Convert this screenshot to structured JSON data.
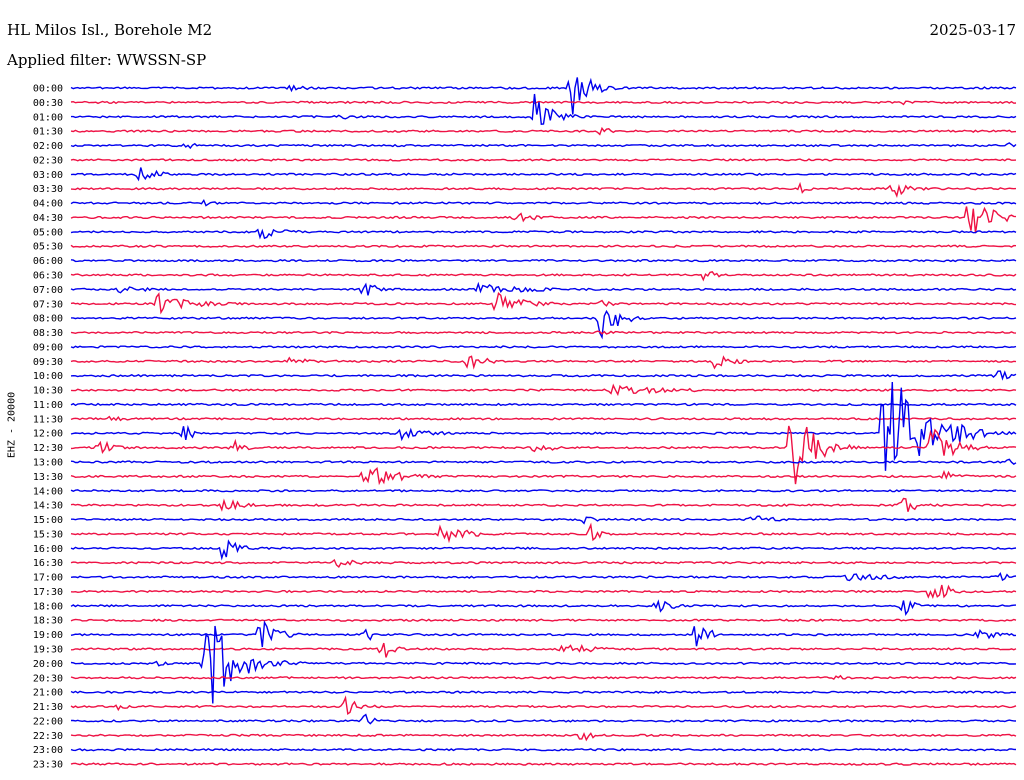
{
  "header": {
    "station": "HL Milos Isl., Borehole M2",
    "date": "2025-03-17",
    "filter": "Applied filter: WWSSN-SP"
  },
  "channel_label": "EHZ - 20000",
  "colors": {
    "even": "#0000ee",
    "odd": "#ee1144"
  },
  "chart_data": {
    "type": "line",
    "title": "HL Milos Isl., Borehole M2",
    "subtitle": "Applied filter: WWSSN-SP",
    "ylabel": "EHZ - 20000",
    "xlabel": "",
    "trace_minutes": 30,
    "rows": [
      "00:00",
      "00:30",
      "01:00",
      "01:30",
      "02:00",
      "02:30",
      "03:00",
      "03:30",
      "04:00",
      "04:30",
      "05:00",
      "05:30",
      "06:00",
      "06:30",
      "07:00",
      "07:30",
      "08:00",
      "08:30",
      "09:00",
      "09:30",
      "10:00",
      "10:30",
      "11:00",
      "11:30",
      "12:00",
      "12:30",
      "13:00",
      "13:30",
      "14:00",
      "14:30",
      "15:00",
      "15:30",
      "16:00",
      "16:30",
      "17:00",
      "17:30",
      "18:00",
      "18:30",
      "19:00",
      "19:30",
      "20:00",
      "20:30",
      "21:00",
      "21:30",
      "22:00",
      "22:30",
      "23:00",
      "23:30"
    ],
    "series_colors": [
      "blue",
      "red"
    ],
    "events": [
      {
        "row": "00:00",
        "t": 0.23,
        "amp": 3,
        "dur": 0.04
      },
      {
        "row": "00:00",
        "t": 0.53,
        "amp": 30,
        "dur": 0.02
      },
      {
        "row": "00:30",
        "t": 0.88,
        "amp": 3,
        "dur": 0.01
      },
      {
        "row": "01:00",
        "t": 0.28,
        "amp": 4,
        "dur": 0.02
      },
      {
        "row": "01:00",
        "t": 0.49,
        "amp": 30,
        "dur": 0.02
      },
      {
        "row": "01:30",
        "t": 0.56,
        "amp": 6,
        "dur": 0.01
      },
      {
        "row": "02:00",
        "t": 0.12,
        "amp": 6,
        "dur": 0.01
      },
      {
        "row": "02:00",
        "t": 0.99,
        "amp": 4,
        "dur": 0.01
      },
      {
        "row": "03:00",
        "t": 0.07,
        "amp": 12,
        "dur": 0.02
      },
      {
        "row": "03:30",
        "t": 0.77,
        "amp": 7,
        "dur": 0.01
      },
      {
        "row": "03:30",
        "t": 0.87,
        "amp": 9,
        "dur": 0.02
      },
      {
        "row": "04:00",
        "t": 0.14,
        "amp": 3,
        "dur": 0.03
      },
      {
        "row": "04:30",
        "t": 0.47,
        "amp": 5,
        "dur": 0.04
      },
      {
        "row": "04:30",
        "t": 0.95,
        "amp": 25,
        "dur": 0.03
      },
      {
        "row": "05:00",
        "t": 0.2,
        "amp": 8,
        "dur": 0.03
      },
      {
        "row": "06:30",
        "t": 0.67,
        "amp": 8,
        "dur": 0.01
      },
      {
        "row": "07:00",
        "t": 0.05,
        "amp": 6,
        "dur": 0.03
      },
      {
        "row": "07:00",
        "t": 0.31,
        "amp": 12,
        "dur": 0.01
      },
      {
        "row": "07:00",
        "t": 0.43,
        "amp": 6,
        "dur": 0.08
      },
      {
        "row": "07:30",
        "t": 0.09,
        "amp": 14,
        "dur": 0.05
      },
      {
        "row": "07:30",
        "t": 0.45,
        "amp": 12,
        "dur": 0.04
      },
      {
        "row": "07:30",
        "t": 0.56,
        "amp": 6,
        "dur": 0.01
      },
      {
        "row": "08:00",
        "t": 0.56,
        "amp": 25,
        "dur": 0.02
      },
      {
        "row": "08:30",
        "t": 0.56,
        "amp": 4,
        "dur": 0.02
      },
      {
        "row": "09:30",
        "t": 0.23,
        "amp": 4,
        "dur": 0.04
      },
      {
        "row": "09:30",
        "t": 0.42,
        "amp": 10,
        "dur": 0.02
      },
      {
        "row": "09:30",
        "t": 0.68,
        "amp": 8,
        "dur": 0.03
      },
      {
        "row": "10:00",
        "t": 0.98,
        "amp": 6,
        "dur": 0.02
      },
      {
        "row": "10:30",
        "t": 0.57,
        "amp": 5,
        "dur": 0.12
      },
      {
        "row": "11:30",
        "t": 0.04,
        "amp": 3,
        "dur": 0.03
      },
      {
        "row": "12:00",
        "t": 0.12,
        "amp": 10,
        "dur": 0.01
      },
      {
        "row": "12:00",
        "t": 0.35,
        "amp": 7,
        "dur": 0.04
      },
      {
        "row": "12:00",
        "t": 0.86,
        "amp": 90,
        "dur": 0.04
      },
      {
        "row": "12:00",
        "t": 0.93,
        "amp": 14,
        "dur": 0.04
      },
      {
        "row": "12:30",
        "t": 0.03,
        "amp": 8,
        "dur": 0.02
      },
      {
        "row": "12:30",
        "t": 0.17,
        "amp": 12,
        "dur": 0.01
      },
      {
        "row": "12:30",
        "t": 0.49,
        "amp": 6,
        "dur": 0.03
      },
      {
        "row": "12:30",
        "t": 0.76,
        "amp": 50,
        "dur": 0.03
      },
      {
        "row": "12:30",
        "t": 0.91,
        "amp": 22,
        "dur": 0.03
      },
      {
        "row": "13:00",
        "t": 0.99,
        "amp": 5,
        "dur": 0.01
      },
      {
        "row": "13:30",
        "t": 0.31,
        "amp": 12,
        "dur": 0.05
      },
      {
        "row": "13:30",
        "t": 0.92,
        "amp": 6,
        "dur": 0.03
      },
      {
        "row": "14:30",
        "t": 0.16,
        "amp": 6,
        "dur": 0.04
      },
      {
        "row": "14:30",
        "t": 0.88,
        "amp": 12,
        "dur": 0.02
      },
      {
        "row": "15:00",
        "t": 0.54,
        "amp": 8,
        "dur": 0.01
      },
      {
        "row": "15:00",
        "t": 0.72,
        "amp": 6,
        "dur": 0.03
      },
      {
        "row": "15:30",
        "t": 0.39,
        "amp": 10,
        "dur": 0.04
      },
      {
        "row": "15:30",
        "t": 0.55,
        "amp": 9,
        "dur": 0.01
      },
      {
        "row": "16:00",
        "t": 0.16,
        "amp": 12,
        "dur": 0.02
      },
      {
        "row": "16:30",
        "t": 0.28,
        "amp": 5,
        "dur": 0.03
      },
      {
        "row": "17:00",
        "t": 0.82,
        "amp": 4,
        "dur": 0.08
      },
      {
        "row": "17:00",
        "t": 0.98,
        "amp": 6,
        "dur": 0.02
      },
      {
        "row": "17:30",
        "t": 0.91,
        "amp": 16,
        "dur": 0.02
      },
      {
        "row": "18:00",
        "t": 0.62,
        "amp": 8,
        "dur": 0.02
      },
      {
        "row": "18:00",
        "t": 0.88,
        "amp": 14,
        "dur": 0.01
      },
      {
        "row": "19:00",
        "t": 0.2,
        "amp": 18,
        "dur": 0.02
      },
      {
        "row": "19:00",
        "t": 0.31,
        "amp": 12,
        "dur": 0.01
      },
      {
        "row": "19:00",
        "t": 0.66,
        "amp": 14,
        "dur": 0.02
      },
      {
        "row": "19:00",
        "t": 0.96,
        "amp": 8,
        "dur": 0.02
      },
      {
        "row": "19:30",
        "t": 0.33,
        "amp": 12,
        "dur": 0.01
      },
      {
        "row": "19:30",
        "t": 0.52,
        "amp": 8,
        "dur": 0.04
      },
      {
        "row": "20:00",
        "t": 0.09,
        "amp": 4,
        "dur": 0.01
      },
      {
        "row": "20:00",
        "t": 0.14,
        "amp": 60,
        "dur": 0.04
      },
      {
        "row": "20:30",
        "t": 0.81,
        "amp": 4,
        "dur": 0.01
      },
      {
        "row": "21:30",
        "t": 0.05,
        "amp": 4,
        "dur": 0.01
      },
      {
        "row": "21:30",
        "t": 0.29,
        "amp": 10,
        "dur": 0.02
      },
      {
        "row": "22:00",
        "t": 0.31,
        "amp": 8,
        "dur": 0.01
      },
      {
        "row": "22:30",
        "t": 0.54,
        "amp": 8,
        "dur": 0.01
      }
    ]
  }
}
